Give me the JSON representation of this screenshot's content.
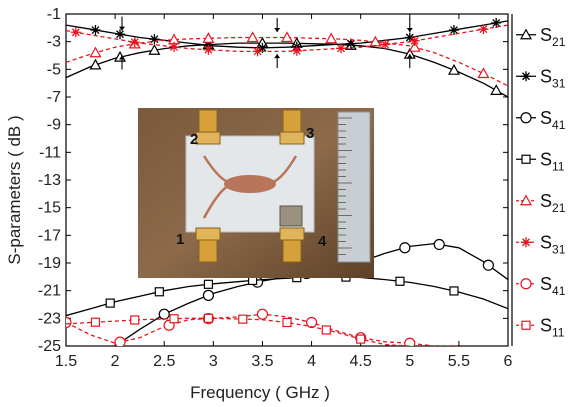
{
  "chart_data": {
    "type": "line",
    "title": "",
    "xlabel": "Frequency ( GHz )",
    "ylabel": "S-parameters ( dB )",
    "xlim": [
      1.5,
      6
    ],
    "ylim": [
      -25,
      -1
    ],
    "xticks": [
      "1.5",
      "2",
      "2.5",
      "3",
      "3.5",
      "4",
      "4.5",
      "5",
      "5.5",
      "6"
    ],
    "yticks": [
      "-1",
      "-3",
      "-5",
      "-7",
      "-9",
      "-11",
      "-13",
      "-15",
      "-17",
      "-19",
      "-21",
      "-23",
      "-25"
    ],
    "legend_position": "right",
    "colors": {
      "measured": "#000000",
      "simulated": "#e8141d"
    },
    "series": [
      {
        "name": "S21",
        "group": "black",
        "marker": "triangle",
        "dash": "solid",
        "x": [
          1.5,
          1.75,
          2,
          2.25,
          2.5,
          2.75,
          3,
          3.25,
          3.5,
          3.75,
          4,
          4.25,
          4.5,
          4.75,
          5,
          5.25,
          5.5,
          5.75,
          6
        ],
        "y": [
          -5.6,
          -4.8,
          -4.2,
          -3.8,
          -3.5,
          -3.3,
          -3.2,
          -3.1,
          -3.1,
          -3.1,
          -3.15,
          -3.2,
          -3.3,
          -3.5,
          -3.9,
          -4.5,
          -5.2,
          -6.0,
          -7.0
        ],
        "markers_x": [
          1.8,
          2.05,
          2.4,
          2.95,
          3.5,
          3.85,
          4.4,
          5.0,
          5.45,
          5.88
        ]
      },
      {
        "name": "S31",
        "group": "black",
        "marker": "star",
        "dash": "solid",
        "x": [
          1.5,
          1.75,
          2,
          2.25,
          2.5,
          2.75,
          3,
          3.25,
          3.5,
          3.75,
          4,
          4.25,
          4.5,
          4.75,
          5,
          5.25,
          5.5,
          5.75,
          6
        ],
        "y": [
          -1.8,
          -2.1,
          -2.4,
          -2.7,
          -2.9,
          -3.1,
          -3.3,
          -3.4,
          -3.45,
          -3.4,
          -3.3,
          -3.2,
          -3.1,
          -2.9,
          -2.7,
          -2.4,
          -2.1,
          -1.8,
          -1.5
        ],
        "markers_x": [
          1.8,
          2.05,
          2.4,
          2.95,
          3.5,
          3.85,
          4.4,
          5.0,
          5.45,
          5.88
        ]
      },
      {
        "name": "S41",
        "group": "black",
        "marker": "circle",
        "dash": "solid",
        "x": [
          2.0,
          2.25,
          2.5,
          2.75,
          3,
          3.25,
          3.5,
          3.75,
          4,
          4.25,
          4.5,
          4.75,
          5,
          5.25,
          5.5,
          5.75,
          6
        ],
        "y": [
          -25.0,
          -23.8,
          -22.7,
          -21.9,
          -21.2,
          -20.7,
          -20.3,
          -20.0,
          -19.7,
          -19.3,
          -18.9,
          -18.3,
          -17.8,
          -17.6,
          -17.9,
          -18.9,
          -20.2
        ],
        "markers_x": [
          2.5,
          2.95,
          3.45,
          3.95,
          4.95,
          5.3,
          5.8
        ]
      },
      {
        "name": "S11",
        "group": "black",
        "marker": "square",
        "dash": "solid",
        "x": [
          1.5,
          1.75,
          2,
          2.25,
          2.5,
          2.75,
          3,
          3.25,
          3.5,
          3.75,
          4,
          4.25,
          4.5,
          4.75,
          5,
          5.25,
          5.5,
          5.75,
          6
        ],
        "y": [
          -22.8,
          -22.3,
          -21.8,
          -21.4,
          -21.0,
          -20.7,
          -20.5,
          -20.35,
          -20.2,
          -20.1,
          -20.0,
          -20.0,
          -20.05,
          -20.2,
          -20.4,
          -20.7,
          -21.1,
          -21.6,
          -22.3
        ],
        "markers_x": [
          1.95,
          2.45,
          2.95,
          3.4,
          3.85,
          4.35,
          4.9,
          5.45
        ]
      },
      {
        "name": "S21",
        "group": "red",
        "marker": "triangle",
        "dash": "dashed",
        "x": [
          1.5,
          1.75,
          2,
          2.25,
          2.5,
          2.75,
          3,
          3.25,
          3.5,
          3.75,
          4,
          4.25,
          4.5,
          4.75,
          5,
          5.25,
          5.5,
          5.75,
          6
        ],
        "y": [
          -4.5,
          -3.9,
          -3.4,
          -3.1,
          -2.9,
          -2.8,
          -2.75,
          -2.7,
          -2.7,
          -2.7,
          -2.75,
          -2.8,
          -2.9,
          -3.1,
          -3.3,
          -3.8,
          -4.5,
          -5.3,
          -6.2
        ],
        "markers_x": [
          1.8,
          2.2,
          2.6,
          2.95,
          3.4,
          3.75,
          4.2,
          4.65,
          5.05,
          5.75
        ]
      },
      {
        "name": "S31",
        "group": "red",
        "marker": "star",
        "dash": "dashed",
        "x": [
          1.5,
          1.75,
          2,
          2.25,
          2.5,
          2.75,
          3,
          3.25,
          3.5,
          3.75,
          4,
          4.25,
          4.5,
          4.75,
          5,
          5.25,
          5.5,
          5.75,
          6
        ],
        "y": [
          -2.2,
          -2.5,
          -2.8,
          -3.1,
          -3.3,
          -3.5,
          -3.6,
          -3.7,
          -3.7,
          -3.7,
          -3.6,
          -3.5,
          -3.4,
          -3.2,
          -3.0,
          -2.7,
          -2.4,
          -2.1,
          -1.8
        ],
        "markers_x": [
          1.6,
          2.2,
          2.6,
          2.95,
          3.45,
          3.85,
          4.3,
          4.75,
          5.05,
          5.75
        ]
      },
      {
        "name": "S41",
        "group": "red",
        "marker": "circle",
        "dash": "dashed",
        "x": [
          1.5,
          1.75,
          2,
          2.25,
          2.5,
          2.75,
          3,
          3.25,
          3.5,
          3.75,
          4,
          4.25,
          4.5,
          4.75,
          5,
          5.25,
          5.5
        ],
        "y": [
          -23.3,
          -24.2,
          -24.8,
          -24.4,
          -23.6,
          -23.1,
          -23.0,
          -22.9,
          -22.7,
          -22.9,
          -23.3,
          -23.9,
          -24.4,
          -24.7,
          -24.8,
          -25.0,
          -25.0
        ],
        "markers_x": [
          1.5,
          2.05,
          2.55,
          2.95,
          3.5,
          4.0,
          4.5,
          5.0
        ]
      },
      {
        "name": "S11",
        "group": "red",
        "marker": "square",
        "dash": "dashed",
        "x": [
          1.5,
          1.75,
          2,
          2.25,
          2.5,
          2.75,
          3,
          3.25,
          3.5,
          3.75,
          4,
          4.25,
          4.5,
          4.75,
          5
        ],
        "y": [
          -23.4,
          -23.3,
          -23.2,
          -23.1,
          -23.05,
          -23.0,
          -23.0,
          -23.05,
          -23.1,
          -23.3,
          -23.6,
          -24.0,
          -24.5,
          -24.9,
          -25.0
        ],
        "markers_x": [
          1.8,
          2.2,
          2.6,
          2.95,
          3.3,
          3.75,
          4.15,
          4.5
        ]
      }
    ],
    "arrows": [
      {
        "x": 2.07,
        "dir": "down",
        "y_tip": -2.2
      },
      {
        "x": 2.07,
        "dir": "up",
        "y_tip": -4.0
      },
      {
        "x": 3.65,
        "dir": "down",
        "y_tip": -2.3
      },
      {
        "x": 3.65,
        "dir": "up",
        "y_tip": -3.9
      },
      {
        "x": 5.0,
        "dir": "down",
        "y_tip": -2.3
      },
      {
        "x": 5.0,
        "dir": "up",
        "y_tip": -3.9
      }
    ],
    "inset_photo": {
      "port_labels": [
        "2",
        "3",
        "1",
        "4"
      ]
    }
  }
}
